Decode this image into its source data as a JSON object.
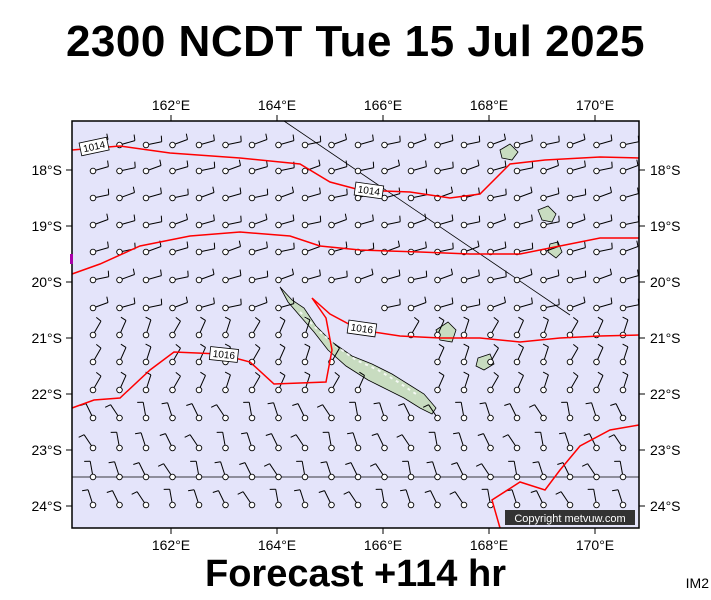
{
  "header": {
    "title": "2300 NCDT Tue 15 Jul 2025"
  },
  "footer": {
    "forecast": "Forecast +114 hr",
    "code": "IM2"
  },
  "map": {
    "lon_ticks": [
      "162°E",
      "164°E",
      "166°E",
      "168°E",
      "170°E"
    ],
    "lat_ticks": [
      "18°S",
      "19°S",
      "20°S",
      "21°S",
      "22°S",
      "23°S",
      "24°S"
    ],
    "isobar_labels": [
      "1014",
      "1014",
      "1016",
      "1016"
    ],
    "copyright": "Copyright metvuw.com",
    "colors": {
      "ocean": "#e4e4fa",
      "isobar": "#ff0000",
      "land": "#c8dcc0",
      "wind": "#000000"
    }
  }
}
